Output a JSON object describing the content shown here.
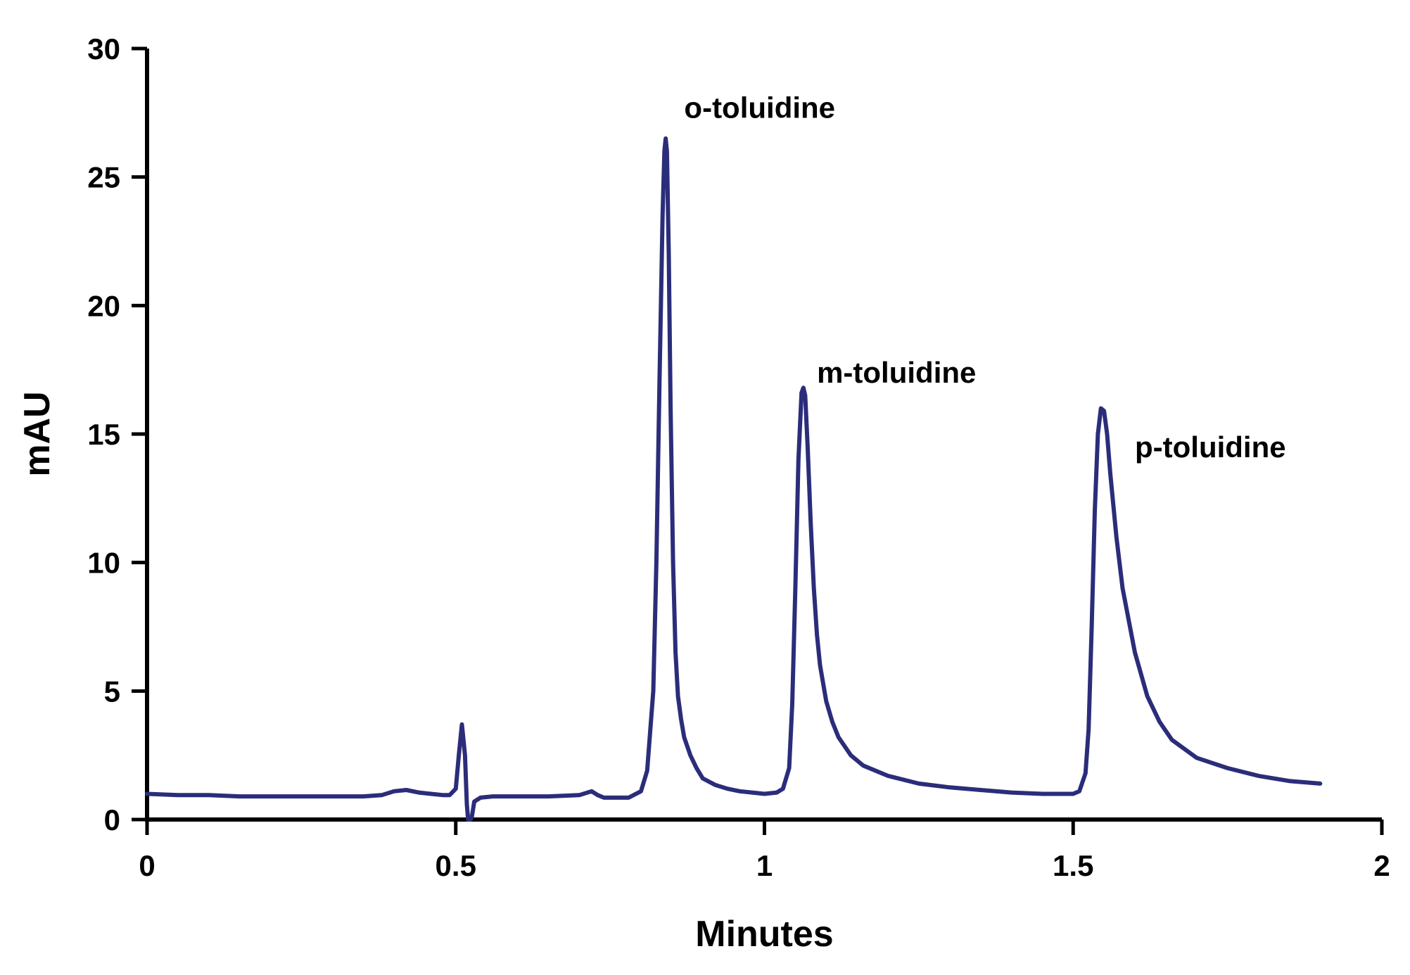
{
  "chart_data": {
    "type": "line",
    "title": "",
    "xlabel": "Minutes",
    "ylabel": "mAU",
    "xlim": [
      0,
      2
    ],
    "ylim": [
      0,
      30
    ],
    "x_ticks": [
      "0",
      "0.5",
      "1",
      "1.5",
      "2"
    ],
    "x_tick_values": [
      0,
      0.5,
      1,
      1.5,
      2
    ],
    "y_ticks": [
      "0",
      "5",
      "10",
      "15",
      "20",
      "25",
      "30"
    ],
    "y_tick_values": [
      0,
      5,
      10,
      15,
      20,
      25,
      30
    ],
    "grid": false,
    "legend": "none",
    "line_color": "#2b2d7a",
    "series": [
      {
        "x": [
          0.0,
          0.05,
          0.1,
          0.15,
          0.2,
          0.25,
          0.3,
          0.35,
          0.38,
          0.4,
          0.42,
          0.44,
          0.46,
          0.48,
          0.49,
          0.5,
          0.505,
          0.51,
          0.515,
          0.518,
          0.52,
          0.522,
          0.524,
          0.526,
          0.53,
          0.54,
          0.56,
          0.6,
          0.65,
          0.7,
          0.72,
          0.73,
          0.74,
          0.76,
          0.78,
          0.8,
          0.81,
          0.82,
          0.825,
          0.83,
          0.835,
          0.838,
          0.84,
          0.842,
          0.845,
          0.848,
          0.852,
          0.856,
          0.86,
          0.865,
          0.87,
          0.88,
          0.89,
          0.9,
          0.92,
          0.94,
          0.96,
          0.98,
          1.0,
          1.02,
          1.03,
          1.04,
          1.045,
          1.05,
          1.055,
          1.06,
          1.063,
          1.066,
          1.07,
          1.075,
          1.08,
          1.085,
          1.09,
          1.1,
          1.11,
          1.12,
          1.14,
          1.16,
          1.2,
          1.25,
          1.3,
          1.35,
          1.4,
          1.45,
          1.5,
          1.51,
          1.52,
          1.525,
          1.53,
          1.535,
          1.54,
          1.545,
          1.55,
          1.555,
          1.56,
          1.57,
          1.58,
          1.6,
          1.62,
          1.64,
          1.66,
          1.7,
          1.75,
          1.8,
          1.85,
          1.9
        ],
        "y": [
          1.0,
          0.95,
          0.95,
          0.9,
          0.9,
          0.9,
          0.9,
          0.9,
          0.95,
          1.1,
          1.15,
          1.05,
          1.0,
          0.95,
          0.95,
          1.2,
          2.5,
          3.7,
          2.5,
          0.6,
          -0.2,
          -0.2,
          -0.2,
          0.1,
          0.7,
          0.85,
          0.9,
          0.9,
          0.9,
          0.95,
          1.1,
          0.95,
          0.85,
          0.85,
          0.85,
          1.1,
          1.9,
          5.0,
          10.0,
          17.0,
          23.5,
          26.0,
          26.5,
          26.0,
          22.0,
          16.0,
          10.0,
          6.5,
          4.8,
          3.9,
          3.2,
          2.5,
          2.0,
          1.6,
          1.35,
          1.2,
          1.1,
          1.05,
          1.0,
          1.05,
          1.2,
          2.0,
          4.5,
          9.0,
          14.0,
          16.6,
          16.8,
          16.5,
          14.5,
          11.5,
          9.0,
          7.2,
          6.0,
          4.6,
          3.8,
          3.2,
          2.5,
          2.1,
          1.7,
          1.4,
          1.25,
          1.15,
          1.05,
          1.0,
          1.0,
          1.1,
          1.8,
          3.5,
          7.5,
          12.0,
          15.0,
          16.0,
          15.9,
          15.0,
          13.5,
          11.0,
          9.0,
          6.5,
          4.8,
          3.8,
          3.1,
          2.4,
          2.0,
          1.7,
          1.5,
          1.4
        ]
      }
    ],
    "annotations": [
      {
        "text": "o-toluidine",
        "x": 0.87,
        "y": 27.3
      },
      {
        "text": "m-toluidine",
        "x": 1.085,
        "y": 17.0
      },
      {
        "text": "p-toluidine",
        "x": 1.6,
        "y": 14.1
      }
    ]
  }
}
